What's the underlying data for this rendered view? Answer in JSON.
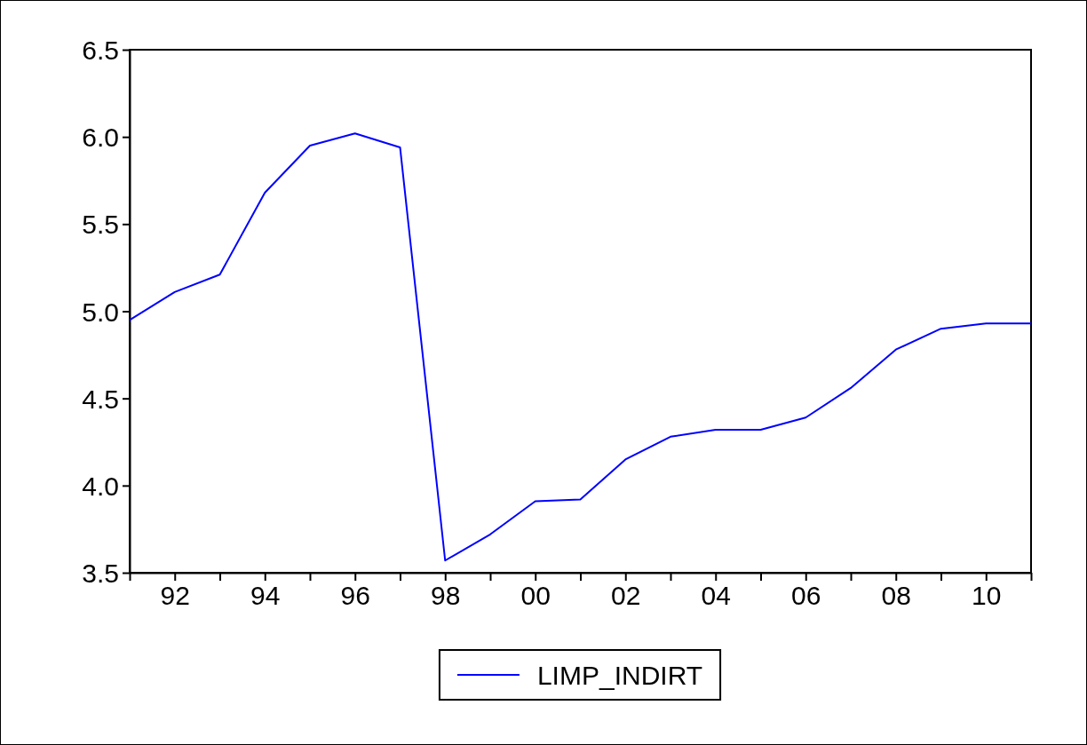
{
  "chart_data": {
    "type": "line",
    "x": [
      1991,
      1992,
      1993,
      1994,
      1995,
      1996,
      1997,
      1998,
      1999,
      2000,
      2001,
      2002,
      2003,
      2004,
      2005,
      2006,
      2007,
      2008,
      2009,
      2010,
      2011
    ],
    "series": [
      {
        "name": "LIMP_INDIRT",
        "color": "#0000ff",
        "values": [
          4.95,
          5.11,
          5.21,
          5.68,
          5.95,
          6.02,
          5.94,
          3.57,
          3.72,
          3.91,
          3.92,
          4.15,
          4.28,
          4.32,
          4.32,
          4.39,
          4.56,
          4.78,
          4.9,
          4.93,
          4.93
        ]
      }
    ],
    "xlim": [
      1991,
      2011
    ],
    "xticks": [
      {
        "value": 1991,
        "label": null
      },
      {
        "value": 1992,
        "label": "92"
      },
      {
        "value": 1993,
        "label": null
      },
      {
        "value": 1994,
        "label": "94"
      },
      {
        "value": 1995,
        "label": null
      },
      {
        "value": 1996,
        "label": "96"
      },
      {
        "value": 1997,
        "label": null
      },
      {
        "value": 1998,
        "label": "98"
      },
      {
        "value": 1999,
        "label": null
      },
      {
        "value": 2000,
        "label": "00"
      },
      {
        "value": 2001,
        "label": null
      },
      {
        "value": 2002,
        "label": "02"
      },
      {
        "value": 2003,
        "label": null
      },
      {
        "value": 2004,
        "label": "04"
      },
      {
        "value": 2005,
        "label": null
      },
      {
        "value": 2006,
        "label": "06"
      },
      {
        "value": 2007,
        "label": null
      },
      {
        "value": 2008,
        "label": "08"
      },
      {
        "value": 2009,
        "label": null
      },
      {
        "value": 2010,
        "label": "10"
      },
      {
        "value": 2011,
        "label": null
      }
    ],
    "ylim": [
      3.5,
      6.5
    ],
    "yticks": [
      {
        "value": 3.5,
        "label": "3.5"
      },
      {
        "value": 4.0,
        "label": "4.0"
      },
      {
        "value": 4.5,
        "label": "4.5"
      },
      {
        "value": 5.0,
        "label": "5.0"
      },
      {
        "value": 5.5,
        "label": "5.5"
      },
      {
        "value": 6.0,
        "label": "6.0"
      },
      {
        "value": 6.5,
        "label": "6.5"
      }
    ],
    "grid": false,
    "legend": "bottom",
    "line_style": "solid",
    "marker": "none"
  }
}
